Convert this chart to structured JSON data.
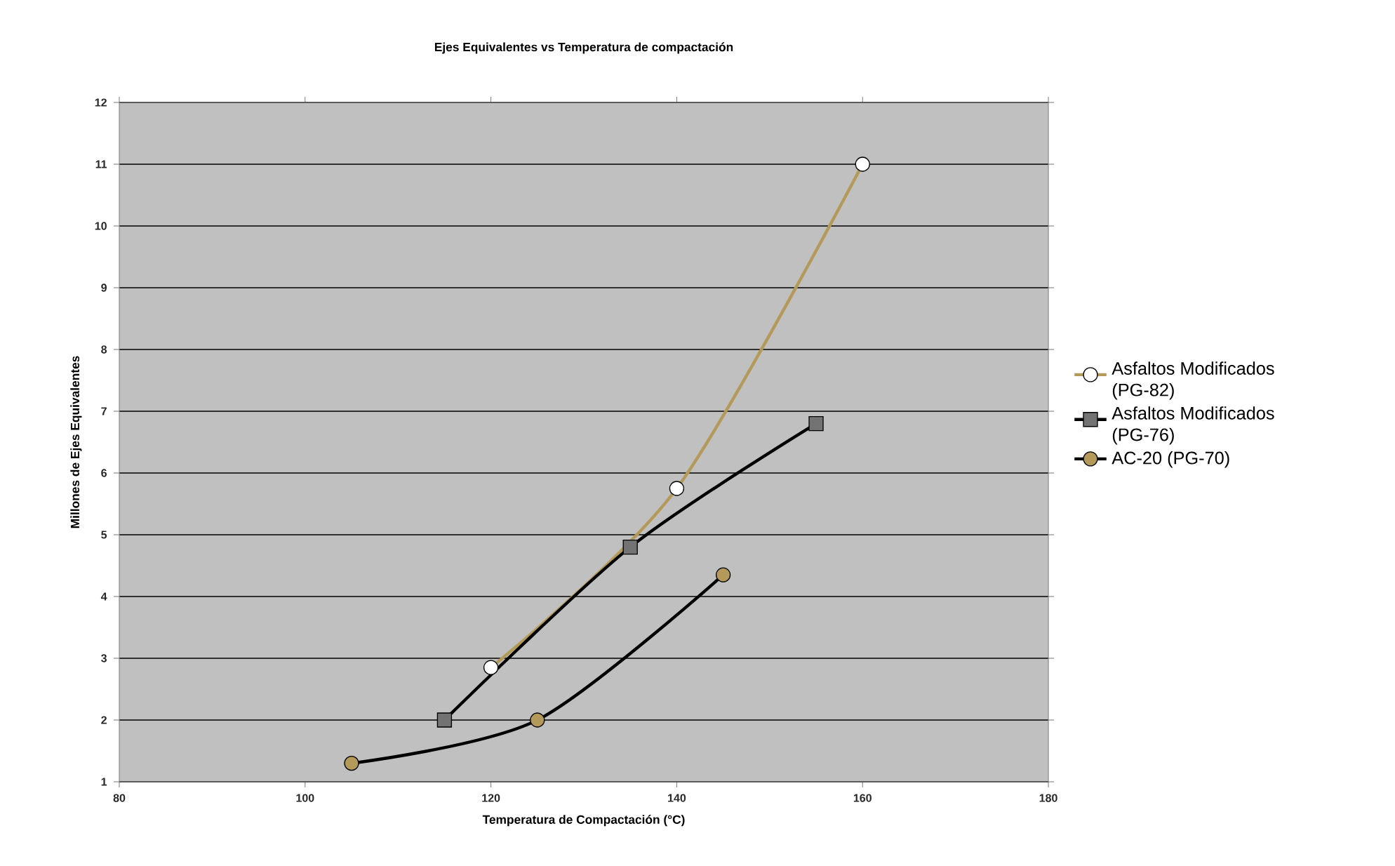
{
  "chart_data": {
    "type": "line",
    "title": "Ejes Equivalentes vs Temperatura de compactación",
    "xlabel": "Temperatura de Compactación (°C)",
    "ylabel": "Millones de Ejes Equivalentes",
    "xlim": [
      80,
      180
    ],
    "xticks": [
      80,
      100,
      120,
      140,
      160,
      180
    ],
    "ylim": [
      1,
      12
    ],
    "yticks": [
      1,
      2,
      3,
      4,
      5,
      6,
      7,
      8,
      9,
      10,
      11,
      12
    ],
    "grid": "y",
    "legend": "right",
    "line_style": "solid",
    "series": [
      {
        "name": "Asfaltos Modificados (PG-82)",
        "color": "#b49a5a",
        "marker": "circle",
        "colors": [
          "#ffffff",
          "#ffffff",
          "#ffffff"
        ],
        "x": [
          120,
          140,
          160
        ],
        "values": [
          2.85,
          5.75,
          11
        ]
      },
      {
        "name": "Asfaltos Modificados (PG-76)",
        "color": "#000000",
        "marker": "square",
        "colors": [
          "#737373",
          "#737373",
          "#737373"
        ],
        "x": [
          115,
          135,
          155
        ],
        "values": [
          2,
          4.8,
          6.8
        ]
      },
      {
        "name": "AC-20 (PG-70)",
        "color": "#000000",
        "marker": "circle",
        "colors": [
          "#b49a5a",
          "#b49a5a",
          "#b49a5a"
        ],
        "x": [
          105,
          125,
          145
        ],
        "values": [
          1.3,
          2,
          4.35
        ]
      }
    ]
  }
}
